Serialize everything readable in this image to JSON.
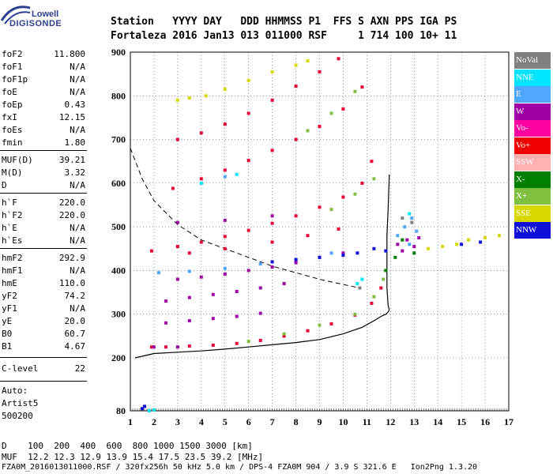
{
  "logo": {
    "line1": "Lowell",
    "line2": "DIGISONDE"
  },
  "header": {
    "line1": "Station   YYYY DAY   DDD HHMMSS P1  FFS S AXN PPS IGA PS",
    "line2": "Fortaleza 2016 Jan13 013 011000 RSF     1 714 100 10+ 11"
  },
  "params": [
    {
      "k": "foF2",
      "v": "11.800"
    },
    {
      "k": "foF1",
      "v": "N/A"
    },
    {
      "k": "foF1p",
      "v": "N/A"
    },
    {
      "k": "foE",
      "v": "N/A"
    },
    {
      "k": "foEp",
      "v": "0.43"
    },
    {
      "k": "fxI",
      "v": "12.15"
    },
    {
      "k": "foEs",
      "v": "N/A"
    },
    {
      "k": "fmin",
      "v": "1.80"
    },
    {
      "k": "MUF(D)",
      "v": "39.21"
    },
    {
      "k": "M(D)",
      "v": "3.32"
    },
    {
      "k": "D",
      "v": "N/A"
    },
    {
      "k": "h`F",
      "v": "220.0"
    },
    {
      "k": "h`F2",
      "v": "220.0"
    },
    {
      "k": "h`E",
      "v": "N/A"
    },
    {
      "k": "h`Es",
      "v": "N/A"
    },
    {
      "k": "hmF2",
      "v": "292.9"
    },
    {
      "k": "hmF1",
      "v": "N/A"
    },
    {
      "k": "hmE",
      "v": "110.0"
    },
    {
      "k": "yF2",
      "v": "74.2"
    },
    {
      "k": "yF1",
      "v": "N/A"
    },
    {
      "k": "yE",
      "v": "20.0"
    },
    {
      "k": "B0",
      "v": "60.7"
    },
    {
      "k": "B1",
      "v": "4.67"
    },
    {
      "k": "C-level",
      "v": "22"
    }
  ],
  "auto": {
    "l1": "Auto:",
    "l2": "Artist5",
    "l3": "500200"
  },
  "legend": [
    {
      "label": "NoVal",
      "color": "#808080"
    },
    {
      "label": "NNE",
      "color": "#00e5ff"
    },
    {
      "label": "E",
      "color": "#4fa6ff"
    },
    {
      "label": "W",
      "color": "#a000a8"
    },
    {
      "label": "Vo-",
      "color": "#ff00a0"
    },
    {
      "label": "Vo+",
      "color": "#f00000"
    },
    {
      "label": "SSW",
      "color": "#ffb0b0"
    },
    {
      "label": "X-",
      "color": "#008000"
    },
    {
      "label": "X+",
      "color": "#80c040"
    },
    {
      "label": "SSE",
      "color": "#d8d800"
    },
    {
      "label": "NNW",
      "color": "#1010d8"
    }
  ],
  "bottom": {
    "line1": "D    100  200  400  600  800 1000 1500 3000 [km]",
    "line2": "MUF  12.2 12.3 12.9 13.9 15.4 17.5 23.5 39.2 [MHz]",
    "line3": "FZA0M_2016013011000.RSF / 320fx256h 50 kHz 5.0 km / DPS-4 FZA0M 904 / 3.9 S 321.6 E   Ion2Png 1.3.20"
  },
  "chart_data": {
    "type": "scatter",
    "xlim": [
      1,
      17
    ],
    "ylim": [
      80,
      900
    ],
    "xticks": [
      1,
      2,
      3,
      4,
      5,
      6,
      7,
      8,
      9,
      10,
      11,
      12,
      13,
      14,
      15,
      16,
      17
    ],
    "yticks": [
      80,
      200,
      300,
      400,
      500,
      600,
      700,
      800,
      900
    ],
    "grid": true,
    "series": [
      {
        "name": "Vo+",
        "color": "#e8003a",
        "points": [
          [
            1.9,
            225
          ],
          [
            2.5,
            225
          ],
          [
            3.5,
            227
          ],
          [
            4.5,
            229
          ],
          [
            5.5,
            233
          ],
          [
            6.5,
            240
          ],
          [
            7.5,
            250
          ],
          [
            8.5,
            262
          ],
          [
            9.5,
            278
          ],
          [
            10.5,
            298
          ],
          [
            11.2,
            325
          ],
          [
            11.6,
            360
          ],
          [
            1.9,
            445
          ],
          [
            3,
            455
          ],
          [
            4,
            465
          ],
          [
            5,
            478
          ],
          [
            6,
            492
          ],
          [
            7,
            508
          ],
          [
            8,
            525
          ],
          [
            9,
            545
          ],
          [
            10,
            568
          ],
          [
            10.8,
            600
          ],
          [
            11.2,
            650
          ],
          [
            2.8,
            588
          ],
          [
            4,
            610
          ],
          [
            5,
            630
          ],
          [
            6,
            652
          ],
          [
            7,
            675
          ],
          [
            8,
            700
          ],
          [
            9,
            730
          ],
          [
            10,
            770
          ],
          [
            10.8,
            820
          ],
          [
            3,
            700
          ],
          [
            4,
            715
          ],
          [
            5,
            735
          ],
          [
            6,
            760
          ],
          [
            7,
            790
          ],
          [
            8,
            822
          ],
          [
            9,
            855
          ],
          [
            9.8,
            885
          ],
          [
            3.5,
            440
          ],
          [
            5,
            450
          ],
          [
            7,
            465
          ],
          [
            8.5,
            480
          ],
          [
            9.8,
            495
          ]
        ]
      },
      {
        "name": "X+",
        "color": "#80c040",
        "points": [
          [
            6,
            238
          ],
          [
            7.5,
            255
          ],
          [
            9,
            275
          ],
          [
            10.5,
            300
          ],
          [
            11.3,
            340
          ],
          [
            11.7,
            380
          ],
          [
            9.5,
            540
          ],
          [
            10.5,
            575
          ],
          [
            11.3,
            610
          ],
          [
            8.5,
            720
          ],
          [
            9.5,
            760
          ],
          [
            10.5,
            810
          ]
        ]
      },
      {
        "name": "W",
        "color": "#a000a8",
        "points": [
          [
            2,
            225
          ],
          [
            3,
            225
          ],
          [
            2.5,
            280
          ],
          [
            3.5,
            285
          ],
          [
            4.5,
            290
          ],
          [
            5.5,
            295
          ],
          [
            6.5,
            302
          ],
          [
            2.5,
            330
          ],
          [
            3.5,
            338
          ],
          [
            4.5,
            345
          ],
          [
            5.5,
            352
          ],
          [
            6.5,
            360
          ],
          [
            7.5,
            370
          ],
          [
            3,
            380
          ],
          [
            4,
            385
          ],
          [
            5,
            392
          ],
          [
            6,
            400
          ],
          [
            7,
            408
          ],
          [
            8,
            418
          ],
          [
            9,
            430
          ],
          [
            10,
            440
          ],
          [
            3,
            510
          ],
          [
            5,
            515
          ],
          [
            7,
            525
          ],
          [
            12.3,
            460
          ],
          [
            12.7,
            470
          ],
          [
            13,
            455
          ],
          [
            13.2,
            475
          ],
          [
            12.5,
            445
          ]
        ]
      },
      {
        "name": "E",
        "color": "#4fa6ff",
        "points": [
          [
            2.2,
            395
          ],
          [
            3.5,
            398
          ],
          [
            5,
            405
          ],
          [
            6.5,
            415
          ],
          [
            8,
            425
          ],
          [
            9.5,
            440
          ],
          [
            12.3,
            480
          ],
          [
            12.6,
            500
          ],
          [
            12.9,
            520
          ],
          [
            13.1,
            490
          ],
          [
            12.8,
            460
          ],
          [
            4,
            600
          ],
          [
            5,
            615
          ]
        ]
      },
      {
        "name": "NNW",
        "color": "#1010d8",
        "points": [
          [
            7,
            420
          ],
          [
            8,
            425
          ],
          [
            9,
            430
          ],
          [
            10,
            435
          ],
          [
            10.6,
            440
          ],
          [
            11.3,
            450
          ],
          [
            11.8,
            445
          ],
          [
            15,
            460
          ],
          [
            15.8,
            465
          ],
          [
            1.5,
            85
          ],
          [
            1.6,
            90
          ]
        ]
      },
      {
        "name": "SSE",
        "color": "#d8d800",
        "points": [
          [
            13.6,
            450
          ],
          [
            14.2,
            455
          ],
          [
            14.8,
            460
          ],
          [
            15.3,
            470
          ],
          [
            16,
            475
          ],
          [
            16.6,
            480
          ],
          [
            3,
            790
          ],
          [
            3.5,
            795
          ],
          [
            4.2,
            800
          ],
          [
            5,
            815
          ],
          [
            6,
            835
          ],
          [
            7,
            855
          ],
          [
            8,
            870
          ],
          [
            8.5,
            880
          ]
        ]
      },
      {
        "name": "NNE",
        "color": "#00e5ff",
        "points": [
          [
            1.8,
            80
          ],
          [
            2,
            82
          ],
          [
            10.6,
            370
          ],
          [
            10.8,
            380
          ],
          [
            12.8,
            530
          ],
          [
            4,
            600
          ],
          [
            5.5,
            620
          ]
        ]
      },
      {
        "name": "X-",
        "color": "#008000",
        "points": [
          [
            11.8,
            400
          ],
          [
            12.2,
            430
          ],
          [
            12.5,
            470
          ],
          [
            13,
            440
          ]
        ]
      },
      {
        "name": "NoVal",
        "color": "#808080",
        "points": [
          [
            12.5,
            520
          ],
          [
            12.9,
            510
          ],
          [
            10.7,
            360
          ]
        ]
      }
    ],
    "trace_curve": {
      "color": "#000000",
      "points": [
        [
          1.2,
          200
        ],
        [
          2,
          210
        ],
        [
          3,
          213
        ],
        [
          4,
          216
        ],
        [
          5,
          220
        ],
        [
          6,
          225
        ],
        [
          7,
          230
        ],
        [
          8,
          235
        ],
        [
          9,
          242
        ],
        [
          10,
          255
        ],
        [
          10.8,
          270
        ],
        [
          11.3,
          285
        ],
        [
          11.6,
          295
        ],
        [
          11.8,
          300
        ],
        [
          11.9,
          305
        ],
        [
          11.95,
          310
        ],
        [
          11.9,
          320
        ],
        [
          11.85,
          360
        ],
        [
          11.85,
          420
        ],
        [
          11.85,
          480
        ],
        [
          11.9,
          540
        ],
        [
          11.95,
          620
        ]
      ]
    },
    "dashed_curve": {
      "color": "#000000",
      "points": [
        [
          1,
          680
        ],
        [
          1.5,
          610
        ],
        [
          2,
          560
        ],
        [
          3,
          505
        ],
        [
          4,
          470
        ],
        [
          5,
          450
        ],
        [
          6,
          430
        ],
        [
          7,
          410
        ],
        [
          8,
          395
        ],
        [
          9,
          380
        ],
        [
          10,
          368
        ],
        [
          10.7,
          360
        ]
      ]
    }
  }
}
